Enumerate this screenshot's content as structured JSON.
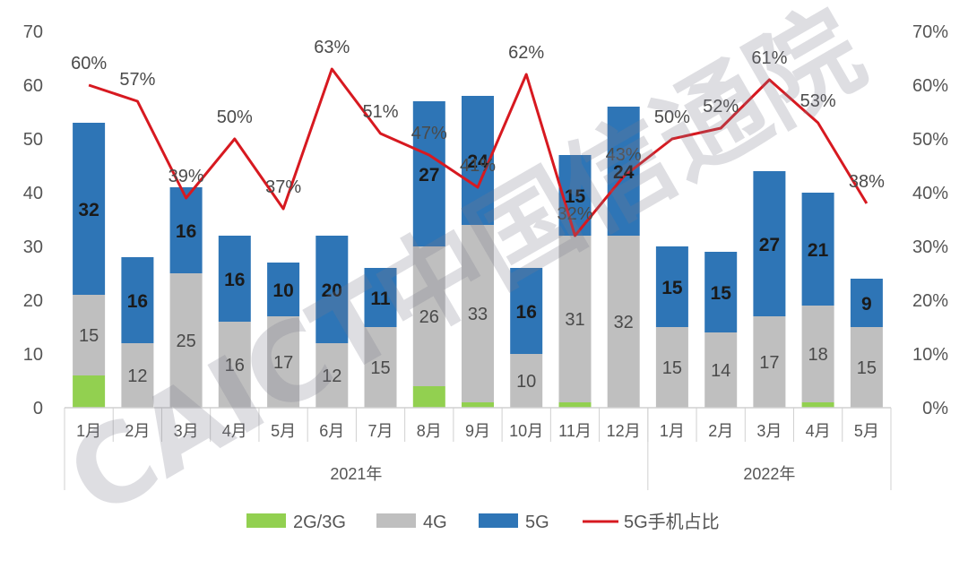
{
  "chart_data": {
    "type": "bar",
    "stacked": true,
    "categories": [
      "1月",
      "2月",
      "3月",
      "4月",
      "5月",
      "6月",
      "7月",
      "8月",
      "9月",
      "10月",
      "11月",
      "12月",
      "1月",
      "2月",
      "3月",
      "4月",
      "5月"
    ],
    "groups": [
      {
        "label": "2021年",
        "count": 12
      },
      {
        "label": "2022年",
        "count": 5
      }
    ],
    "series": [
      {
        "name": "2G/3G",
        "type": "bar",
        "color": "#92d050",
        "values": [
          6,
          0,
          0,
          0,
          0,
          0,
          0,
          4,
          1,
          0,
          1,
          0,
          0,
          0,
          0,
          1,
          0
        ]
      },
      {
        "name": "4G",
        "type": "bar",
        "color": "#bfbfbf",
        "values": [
          15,
          12,
          25,
          16,
          17,
          12,
          15,
          26,
          33,
          10,
          31,
          32,
          15,
          14,
          17,
          18,
          15
        ]
      },
      {
        "name": "5G",
        "type": "bar",
        "color": "#2e75b6",
        "values": [
          32,
          16,
          16,
          16,
          10,
          20,
          11,
          27,
          24,
          16,
          15,
          24,
          15,
          15,
          27,
          21,
          9
        ]
      },
      {
        "name": "5G手机占比",
        "type": "line",
        "axis": "right",
        "color": "#d71920",
        "values": [
          60,
          57,
          39,
          50,
          37,
          63,
          51,
          47,
          41,
          62,
          32,
          43,
          50,
          52,
          61,
          53,
          38
        ]
      }
    ],
    "data_labels": {
      "4G": [
        "15",
        "12",
        "25",
        "16",
        "17",
        "12",
        "15",
        "26",
        "33",
        "10",
        "31",
        "32",
        "15",
        "14",
        "17",
        "18",
        "15"
      ],
      "5G": [
        "32",
        "16",
        "16",
        "16",
        "10",
        "20",
        "11",
        "27",
        "24",
        "16",
        "15",
        "24",
        "15",
        "15",
        "27",
        "21",
        "9"
      ],
      "5G手机占比": [
        "60%",
        "57%",
        "39%",
        "50%",
        "37%",
        "63%",
        "51%",
        "47%",
        "41%",
        "62%",
        "32%",
        "43%",
        "50%",
        "52%",
        "61%",
        "53%",
        "38%"
      ]
    },
    "y_left": {
      "ylim": [
        0,
        70
      ],
      "ticks": [
        "0",
        "10",
        "20",
        "30",
        "40",
        "50",
        "60",
        "70"
      ]
    },
    "y_right": {
      "ylim": [
        0,
        70
      ],
      "ticks": [
        "0%",
        "10%",
        "20%",
        "30%",
        "40%",
        "50%",
        "60%",
        "70%"
      ]
    },
    "legend": {
      "position": "bottom",
      "items": [
        "2G/3G",
        "4G",
        "5G",
        "5G手机占比"
      ]
    },
    "grid": false
  },
  "watermark": {
    "text": "CAICT中国信通院"
  }
}
